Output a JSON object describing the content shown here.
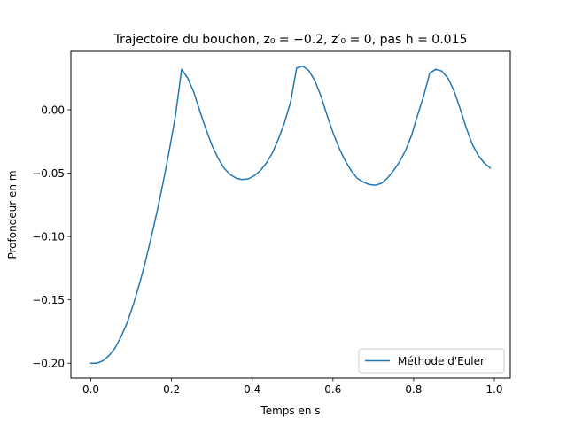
{
  "chart_data": {
    "type": "line",
    "title": "Trajectoire du bouchon, z₀ = −0.2, z′₀ = 0, pas h = 0.015",
    "xlabel": "Temps en s",
    "ylabel": "Profondeur en m",
    "xlim": [
      -0.0495,
      1.0395
    ],
    "ylim": [
      -0.2117,
      0.0461
    ],
    "xticks": [
      0.0,
      0.2,
      0.4,
      0.6,
      0.8,
      1.0
    ],
    "xtick_labels": [
      "0.0",
      "0.2",
      "0.4",
      "0.6",
      "0.8",
      "1.0"
    ],
    "yticks": [
      0.0,
      -0.05,
      -0.1,
      -0.15,
      -0.2
    ],
    "ytick_labels": [
      "0.00",
      "−0.05",
      "−0.10",
      "−0.15",
      "−0.20"
    ],
    "grid": false,
    "legend_position": "bottom-right",
    "series": [
      {
        "name": "Méthode d'Euler",
        "color": "#1f77b4",
        "x": [
          0.0,
          0.015,
          0.03,
          0.045,
          0.06,
          0.075,
          0.09,
          0.105,
          0.12,
          0.135,
          0.15,
          0.165,
          0.18,
          0.195,
          0.21,
          0.225,
          0.24,
          0.255,
          0.27,
          0.285,
          0.3,
          0.315,
          0.33,
          0.345,
          0.36,
          0.375,
          0.39,
          0.405,
          0.42,
          0.435,
          0.45,
          0.465,
          0.48,
          0.495,
          0.51,
          0.525,
          0.54,
          0.555,
          0.57,
          0.585,
          0.6,
          0.615,
          0.63,
          0.645,
          0.66,
          0.675,
          0.69,
          0.705,
          0.72,
          0.735,
          0.75,
          0.765,
          0.78,
          0.795,
          0.81,
          0.825,
          0.84,
          0.855,
          0.87,
          0.885,
          0.9,
          0.915,
          0.93,
          0.945,
          0.96,
          0.975,
          0.99
        ],
        "y": [
          -0.2,
          -0.2,
          -0.198,
          -0.194,
          -0.188,
          -0.179,
          -0.168,
          -0.154,
          -0.138,
          -0.12,
          -0.1,
          -0.079,
          -0.056,
          -0.031,
          -0.004,
          0.032,
          0.025,
          0.014,
          -0.001,
          -0.015,
          -0.028,
          -0.038,
          -0.046,
          -0.051,
          -0.054,
          -0.055,
          -0.0545,
          -0.052,
          -0.048,
          -0.042,
          -0.034,
          -0.023,
          -0.01,
          0.006,
          0.033,
          0.0345,
          0.031,
          0.023,
          0.011,
          -0.004,
          -0.018,
          -0.03,
          -0.04,
          -0.048,
          -0.054,
          -0.057,
          -0.059,
          -0.0595,
          -0.058,
          -0.054,
          -0.048,
          -0.041,
          -0.032,
          -0.02,
          -0.004,
          0.011,
          0.029,
          0.032,
          0.0305,
          0.025,
          0.015,
          0.001,
          -0.014,
          -0.027,
          -0.036,
          -0.042,
          -0.046
        ]
      }
    ]
  }
}
